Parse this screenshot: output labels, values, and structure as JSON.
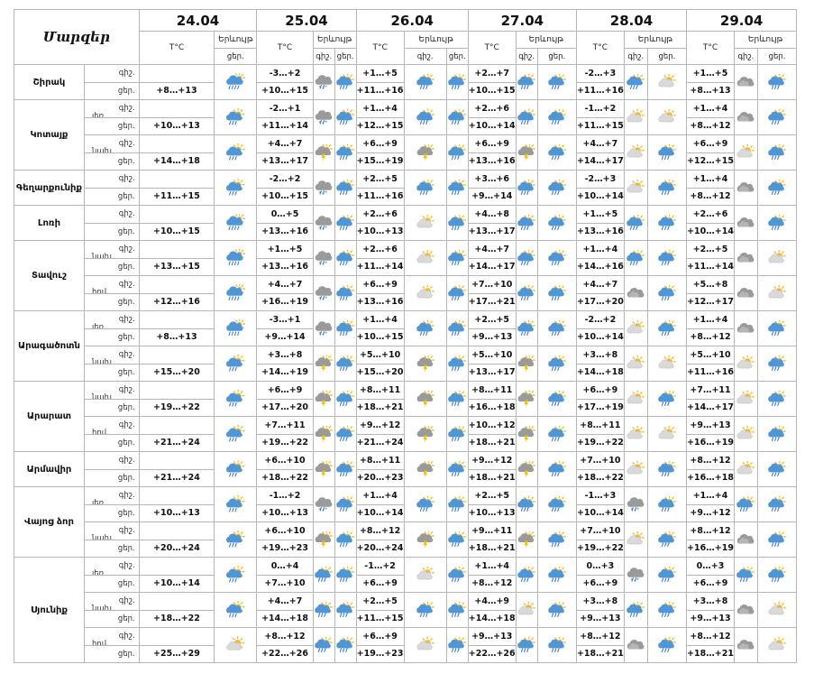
{
  "header": {
    "title": "Մարզեր",
    "dates": [
      "24.04",
      "25.04",
      "26.04",
      "27.04",
      "28.04",
      "29.04"
    ],
    "temp_label": "T°C",
    "phenomenon_label": "Երևույթ",
    "night_label": "գիշ.",
    "day_label": "ցեր."
  },
  "regions": [
    {
      "name": "Շիրակ",
      "zones": [
        {
          "label": "",
          "night": [
            "",
            "-3…+2",
            "+1…+5",
            "+2…+7",
            "-2…+3",
            "+1…+5"
          ],
          "day": [
            "+8…+13",
            "+10…+15",
            "+11…+16",
            "+10…+15",
            "+11…+16",
            "+8…+13"
          ],
          "first_icon": "rain-cloud-icon",
          "icons_night": [
            "snow-cloud-icon",
            "rain-sun-icon",
            "rain-sun-icon",
            "rain-sun-icon",
            "cloudy-icon"
          ],
          "icons_day": [
            "rain-sun-icon",
            "rain-sun-icon",
            "rain-sun-icon",
            "partly-cloudy-icon",
            "rain-sun-icon"
          ]
        }
      ]
    },
    {
      "name": "Կոտայք",
      "zones": [
        {
          "label": "լեռ.",
          "night": [
            "",
            "-2…+1",
            "+1…+4",
            "+2…+6",
            "-1…+2",
            "+1…+4"
          ],
          "day": [
            "+10…+13",
            "+11…+14",
            "+12…+15",
            "+10…+14",
            "+11…+15",
            "+8…+12"
          ],
          "first_icon": "rain-sun-icon",
          "icons_night": [
            "snow-cloud-icon",
            "rain-sun-icon",
            "rain-sun-icon",
            "partly-cloudy-icon",
            "cloudy-icon"
          ],
          "icons_day": [
            "rain-sun-icon",
            "rain-sun-icon",
            "rain-sun-icon",
            "partly-cloudy-icon",
            "rain-sun-icon"
          ]
        },
        {
          "label": "նախ.",
          "night": [
            "",
            "+4…+7",
            "+6…+9",
            "+6…+9",
            "+4…+7",
            "+6…+9"
          ],
          "day": [
            "+14…+18",
            "+13…+17",
            "+15…+19",
            "+13…+16",
            "+14…+17",
            "+12…+15"
          ],
          "first_icon": "rain-sun-icon",
          "icons_night": [
            "storm-cloud-icon",
            "storm-cloud-icon",
            "storm-cloud-icon",
            "partly-cloudy-icon",
            "partly-cloudy-icon"
          ],
          "icons_day": [
            "rain-sun-icon",
            "rain-sun-icon",
            "rain-sun-icon",
            "rain-sun-icon",
            "rain-sun-icon"
          ]
        }
      ]
    },
    {
      "name": "Գեղարքունիք",
      "zones": [
        {
          "label": "",
          "night": [
            "",
            "-2…+2",
            "+2…+5",
            "+3…+6",
            "-2…+3",
            "+1…+4"
          ],
          "day": [
            "+11…+15",
            "+10…+15",
            "+11…+16",
            "+9…+14",
            "+10…+14",
            "+8…+12"
          ],
          "first_icon": "rain-sun-icon",
          "icons_night": [
            "snow-cloud-icon",
            "rain-sun-icon",
            "rain-sun-icon",
            "partly-cloudy-icon",
            "cloudy-icon"
          ],
          "icons_day": [
            "rain-sun-icon",
            "rain-sun-icon",
            "rain-sun-icon",
            "rain-sun-icon",
            "rain-sun-icon"
          ]
        }
      ]
    },
    {
      "name": "Լոռի",
      "zones": [
        {
          "label": "",
          "night": [
            "",
            "0…+5",
            "+2…+6",
            "+4…+8",
            "+1…+5",
            "+2…+6"
          ],
          "day": [
            "+10…+15",
            "+13…+16",
            "+10…+13",
            "+13…+17",
            "+13…+16",
            "+10…+14"
          ],
          "first_icon": "rain-cloud-icon",
          "icons_night": [
            "snow-cloud-icon",
            "partly-cloudy-icon",
            "rain-sun-icon",
            "rain-sun-icon",
            "cloudy-icon"
          ],
          "icons_day": [
            "rain-sun-icon",
            "rain-sun-icon",
            "rain-sun-icon",
            "rain-sun-icon",
            "rain-sun-icon"
          ]
        }
      ]
    },
    {
      "name": "Տավուշ",
      "zones": [
        {
          "label": "նախ.",
          "night": [
            "",
            "+1…+5",
            "+2…+6",
            "+4…+7",
            "+1…+4",
            "+2…+5"
          ],
          "day": [
            "+13…+15",
            "+13…+16",
            "+11…+14",
            "+14…+17",
            "+14…+16",
            "+11…+14"
          ],
          "first_icon": "rain-cloud-icon",
          "icons_night": [
            "snow-cloud-icon",
            "partly-cloudy-icon",
            "rain-sun-icon",
            "rain-sun-icon",
            "cloudy-icon"
          ],
          "icons_day": [
            "rain-sun-icon",
            "rain-sun-icon",
            "rain-sun-icon",
            "rain-sun-icon",
            "partly-cloudy-icon"
          ]
        },
        {
          "label": "հով.",
          "night": [
            "",
            "+4…+7",
            "+6…+9",
            "+7…+10",
            "+4…+7",
            "+5…+8"
          ],
          "day": [
            "+12…+16",
            "+16…+19",
            "+13…+16",
            "+17…+21",
            "+17…+20",
            "+12…+17"
          ],
          "first_icon": "rain-cloud-icon",
          "icons_night": [
            "snow-cloud-icon",
            "partly-cloudy-icon",
            "rain-sun-icon",
            "cloudy-icon",
            "cloudy-icon"
          ],
          "icons_day": [
            "rain-sun-icon",
            "rain-sun-icon",
            "rain-sun-icon",
            "rain-sun-icon",
            "partly-cloudy-icon"
          ]
        }
      ]
    },
    {
      "name": "Արագածոտն",
      "zones": [
        {
          "label": "լեռ.",
          "night": [
            "",
            "-3…+1",
            "+1…+4",
            "+2…+5",
            "-2…+2",
            "+1…+4"
          ],
          "day": [
            "+8…+13",
            "+9…+14",
            "+10…+15",
            "+9…+13",
            "+10…+14",
            "+8…+12"
          ],
          "first_icon": "rain-cloud-icon",
          "icons_night": [
            "snow-cloud-icon",
            "rain-sun-icon",
            "rain-sun-icon",
            "partly-cloudy-icon",
            "cloudy-icon"
          ],
          "icons_day": [
            "rain-sun-icon",
            "rain-sun-icon",
            "rain-sun-icon",
            "rain-sun-icon",
            "rain-sun-icon"
          ]
        },
        {
          "label": "նախ.",
          "night": [
            "",
            "+3…+8",
            "+5…+10",
            "+5…+10",
            "+3…+8",
            "+5…+10"
          ],
          "day": [
            "+15…+20",
            "+14…+19",
            "+15…+20",
            "+13…+17",
            "+14…+18",
            "+11…+16"
          ],
          "first_icon": "rain-sun-icon",
          "icons_night": [
            "storm-cloud-icon",
            "storm-cloud-icon",
            "storm-cloud-icon",
            "partly-cloudy-icon",
            "partly-cloudy-icon"
          ],
          "icons_day": [
            "rain-sun-icon",
            "rain-sun-icon",
            "rain-sun-icon",
            "partly-cloudy-icon",
            "rain-sun-icon"
          ]
        }
      ]
    },
    {
      "name": "Արարատ",
      "zones": [
        {
          "label": "նախ.",
          "night": [
            "",
            "+6…+9",
            "+8…+11",
            "+8…+11",
            "+6…+9",
            "+7…+11"
          ],
          "day": [
            "+19…+22",
            "+17…+20",
            "+18…+21",
            "+16…+18",
            "+17…+19",
            "+14…+17"
          ],
          "first_icon": "rain-sun-icon",
          "icons_night": [
            "storm-cloud-icon",
            "storm-cloud-icon",
            "storm-cloud-icon",
            "partly-cloudy-icon",
            "partly-cloudy-icon"
          ],
          "icons_day": [
            "rain-sun-icon",
            "rain-sun-icon",
            "rain-sun-icon",
            "rain-sun-icon",
            "rain-sun-icon"
          ]
        },
        {
          "label": "հով.",
          "night": [
            "",
            "+7…+11",
            "+9…+12",
            "+10…+12",
            "+8…+11",
            "+9…+13"
          ],
          "day": [
            "+21…+24",
            "+19…+22",
            "+21…+24",
            "+18…+21",
            "+19…+22",
            "+16…+19"
          ],
          "first_icon": "rain-sun-icon",
          "icons_night": [
            "storm-cloud-icon",
            "storm-cloud-icon",
            "storm-cloud-icon",
            "partly-cloudy-icon",
            "partly-cloudy-icon"
          ],
          "icons_day": [
            "rain-sun-icon",
            "rain-sun-icon",
            "rain-sun-icon",
            "partly-cloudy-icon",
            "rain-sun-icon"
          ]
        }
      ]
    },
    {
      "name": "Արմավիր",
      "zones": [
        {
          "label": "",
          "night": [
            "",
            "+6…+10",
            "+8…+11",
            "+9…+12",
            "+7…+10",
            "+8…+12"
          ],
          "day": [
            "+21…+24",
            "+18…+22",
            "+20…+23",
            "+18…+21",
            "+18…+22",
            "+16…+18"
          ],
          "first_icon": "rain-sun-icon",
          "icons_night": [
            "storm-cloud-icon",
            "storm-cloud-icon",
            "storm-cloud-icon",
            "partly-cloudy-icon",
            "partly-cloudy-icon"
          ],
          "icons_day": [
            "rain-sun-icon",
            "rain-sun-icon",
            "rain-sun-icon",
            "rain-sun-icon",
            "rain-sun-icon"
          ]
        }
      ]
    },
    {
      "name": "Վայոց ձոր",
      "zones": [
        {
          "label": "լեռ.",
          "night": [
            "",
            "-1…+2",
            "+1…+4",
            "+2…+5",
            "-1…+3",
            "+1…+4"
          ],
          "day": [
            "+10…+13",
            "+10…+13",
            "+10…+14",
            "+10…+13",
            "+10…+14",
            "+9…+12"
          ],
          "first_icon": "rain-sun-icon",
          "icons_night": [
            "snow-cloud-icon",
            "rain-sun-icon",
            "rain-sun-icon",
            "snow-cloud-icon",
            "rain-sun-icon"
          ],
          "icons_day": [
            "rain-sun-icon",
            "rain-sun-icon",
            "rain-sun-icon",
            "rain-sun-icon",
            "rain-sun-icon"
          ]
        },
        {
          "label": "նախ.",
          "night": [
            "",
            "+6…+10",
            "+8…+12",
            "+9…+11",
            "+7…+10",
            "+8…+12"
          ],
          "day": [
            "+20…+24",
            "+19…+23",
            "+20…+24",
            "+18…+21",
            "+19…+22",
            "+16…+19"
          ],
          "first_icon": "rain-sun-icon",
          "icons_night": [
            "storm-cloud-icon",
            "storm-cloud-icon",
            "storm-cloud-icon",
            "partly-cloudy-icon",
            "cloudy-icon"
          ],
          "icons_day": [
            "rain-sun-icon",
            "rain-sun-icon",
            "rain-sun-icon",
            "rain-sun-icon",
            "rain-sun-icon"
          ]
        }
      ]
    },
    {
      "name": "Սյունիք",
      "zones": [
        {
          "label": "լեռ.",
          "night": [
            "",
            "0…+4",
            "-1…+2",
            "+1…+4",
            "0…+3",
            "0…+3"
          ],
          "day": [
            "+10…+14",
            "+7…+10",
            "+6…+9",
            "+8…+12",
            "+6…+9",
            "+6…+9"
          ],
          "first_icon": "rain-sun-icon",
          "icons_night": [
            "rain-sun-icon",
            "partly-cloudy-icon",
            "rain-sun-icon",
            "snow-cloud-icon",
            "rain-sun-icon"
          ],
          "icons_day": [
            "rain-sun-icon",
            "rain-sun-icon",
            "rain-sun-icon",
            "rain-sun-icon",
            "rain-sun-icon"
          ]
        },
        {
          "label": "նախ.",
          "night": [
            "",
            "+4…+7",
            "+2…+5",
            "+4…+9",
            "+3…+8",
            "+3…+8"
          ],
          "day": [
            "+18…+22",
            "+14…+18",
            "+11…+15",
            "+14…+18",
            "+9…+13",
            "+9…+13"
          ],
          "first_icon": "rain-sun-icon",
          "icons_night": [
            "rain-sun-icon",
            "rain-sun-icon",
            "partly-cloudy-icon",
            "rain-sun-icon",
            "cloudy-icon"
          ],
          "icons_day": [
            "rain-sun-icon",
            "rain-sun-icon",
            "rain-sun-icon",
            "rain-sun-icon",
            "partly-cloudy-icon"
          ]
        },
        {
          "label": "հով.",
          "night": [
            "",
            "+8…+12",
            "+6…+9",
            "+9…+13",
            "+8…+12",
            "+8…+12"
          ],
          "day": [
            "+25…+29",
            "+22…+26",
            "+19…+23",
            "+22…+26",
            "+18…+21",
            "+18…+21"
          ],
          "first_icon": "partly-cloudy-icon",
          "icons_night": [
            "rain-sun-icon",
            "partly-cloudy-icon",
            "rain-sun-icon",
            "cloudy-icon",
            "cloudy-icon"
          ],
          "icons_day": [
            "rain-sun-icon",
            "rain-sun-icon",
            "rain-sun-icon",
            "rain-sun-icon",
            "partly-cloudy-icon"
          ]
        }
      ]
    }
  ],
  "colors": {
    "cloud_light": "#d9d9d9",
    "cloud_dark": "#9a9a9a",
    "cloud_blue": "#4e96d6",
    "sun": "#f5b82e",
    "rain": "#3a7ecf",
    "lightning": "#f2c100",
    "snow": "#6aa6dc",
    "grid": "#b7b7b7"
  }
}
